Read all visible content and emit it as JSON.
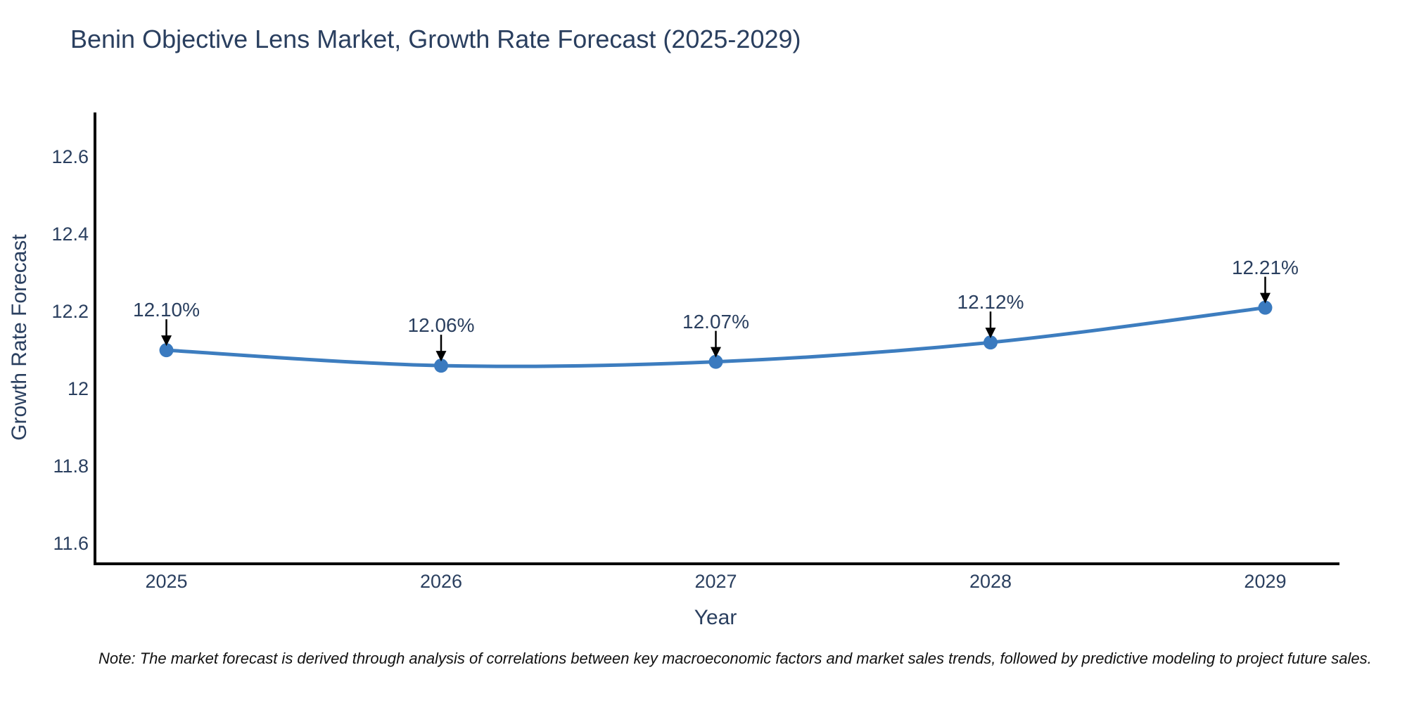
{
  "chart_data": {
    "type": "line",
    "line_shape": "spline",
    "title": "Benin Objective Lens Market, Growth Rate Forecast (2025-2029)",
    "xlabel": "Year",
    "ylabel": "Growth Rate Forecast",
    "x": [
      2025,
      2026,
      2027,
      2028,
      2029
    ],
    "categories": [
      "2025",
      "2026",
      "2027",
      "2028",
      "2029"
    ],
    "values": [
      12.1,
      12.06,
      12.07,
      12.12,
      12.21
    ],
    "point_labels": [
      "12.10%",
      "12.06%",
      "12.07%",
      "12.12%",
      "12.21%"
    ],
    "xlim": [
      2024.74,
      2029.26
    ],
    "ylim": [
      11.551,
      12.715
    ],
    "yticks": {
      "values": [
        12.6,
        12.4,
        12.2,
        12.0,
        11.8,
        11.6
      ],
      "labels": [
        "12.6",
        "12.4",
        "12.2",
        "12",
        "11.8",
        "11.6"
      ]
    },
    "grid": false,
    "legend": false,
    "annotations_arrow": "down-black",
    "colors": {
      "line": "#3d7dbf",
      "marker": "#3a7abf",
      "axis": "#000000",
      "text": "#2a3f5f",
      "arrow": "#000000"
    }
  },
  "footnote": "Note: The market forecast is derived through analysis of correlations between key macroeconomic factors and market sales trends, followed by predictive modeling to project future sales."
}
